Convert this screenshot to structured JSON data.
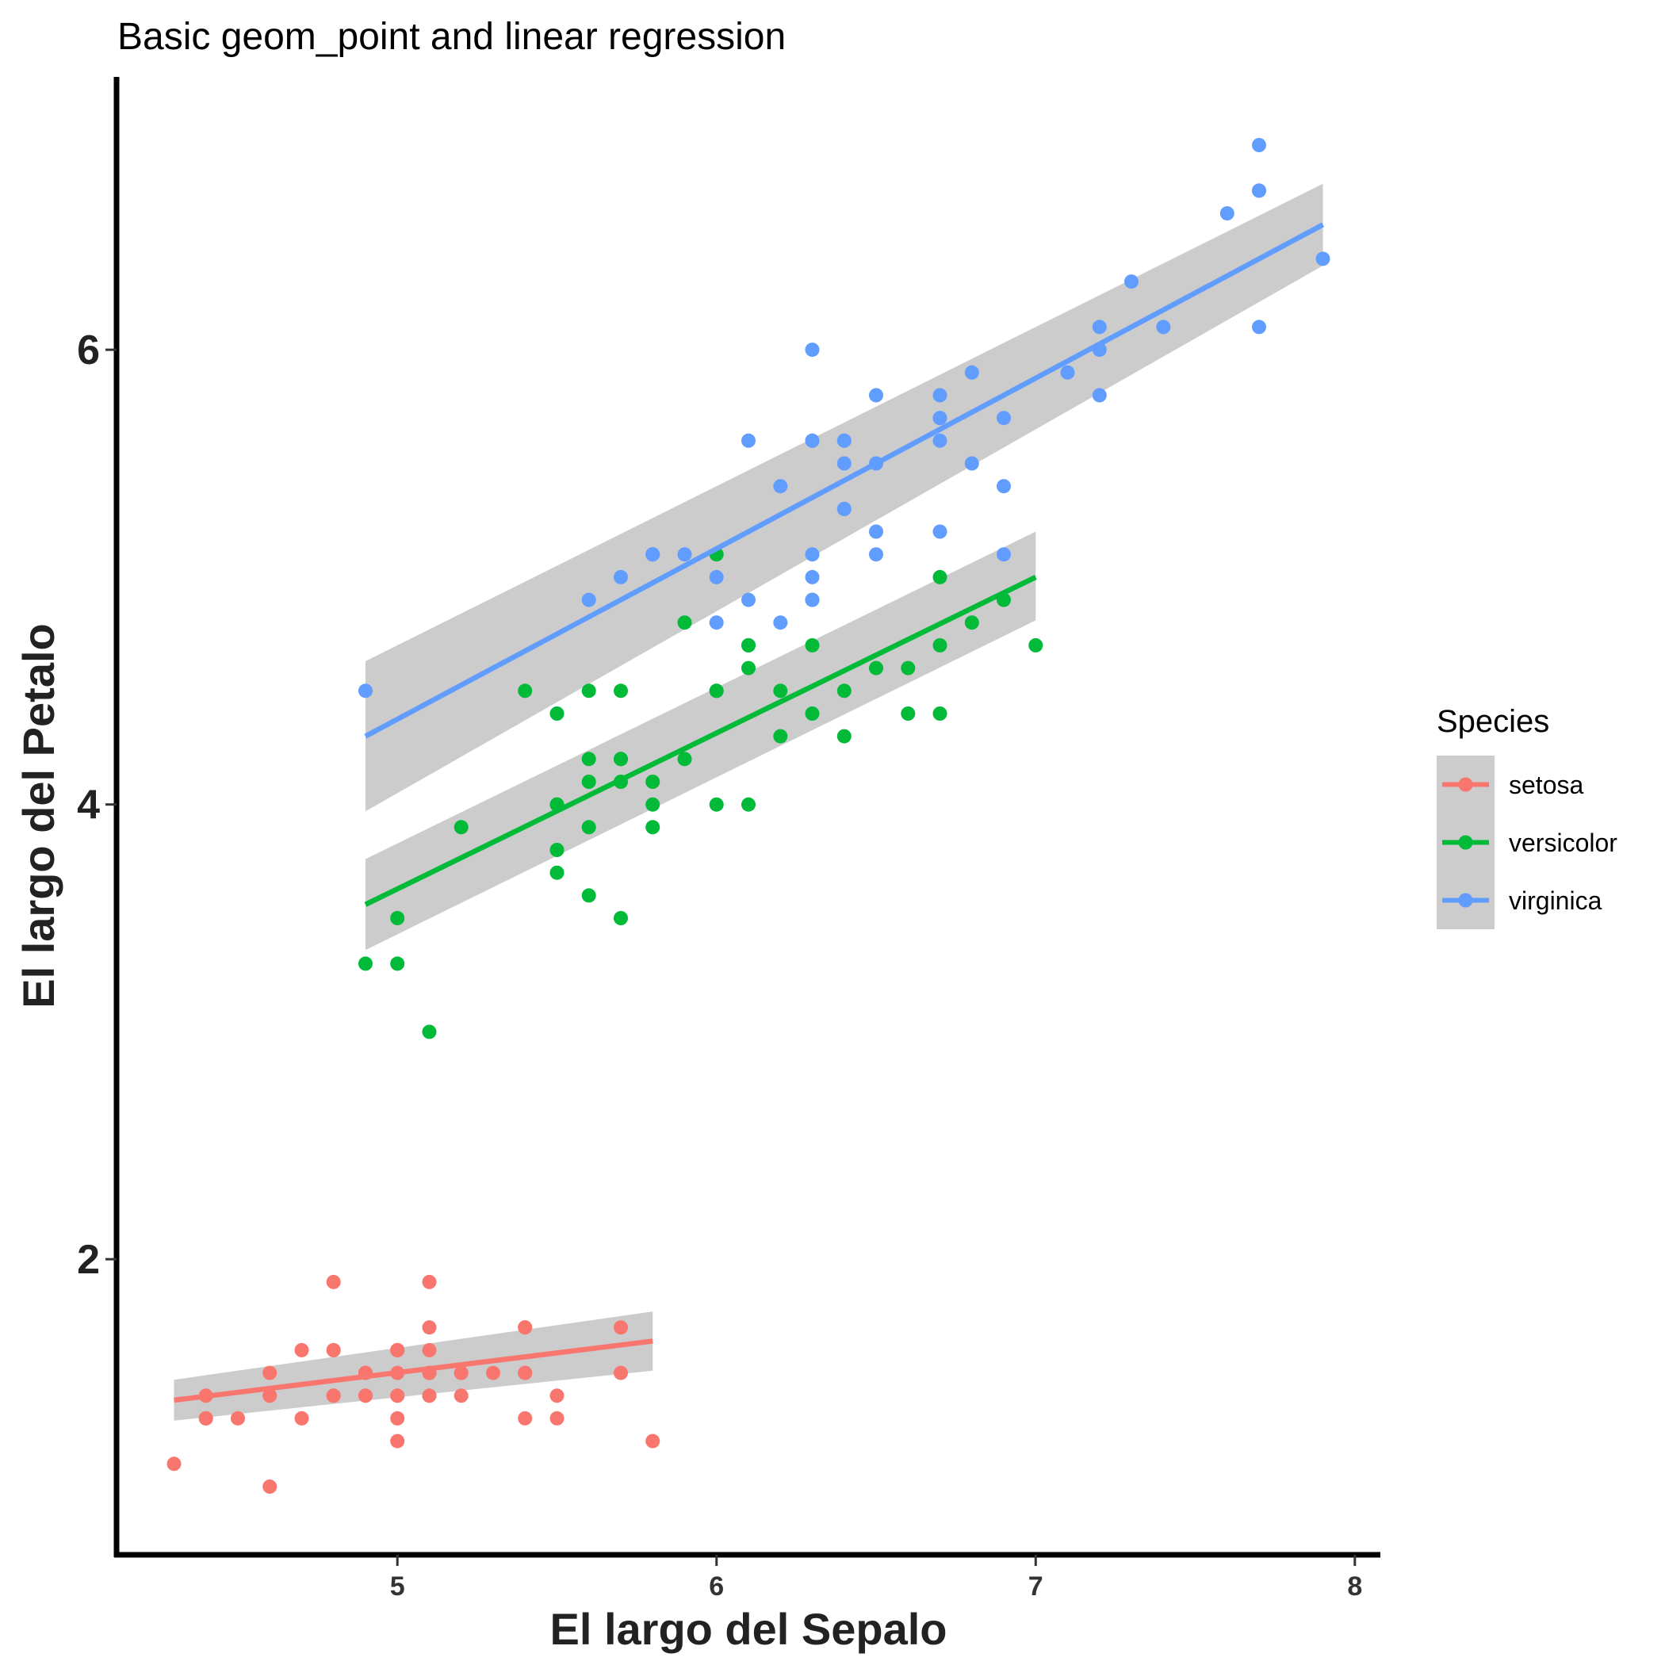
{
  "chart_data": {
    "type": "scatter",
    "title": "Basic geom_point and linear regression",
    "xlabel": "El largo del Sepalo",
    "ylabel": "El largo del Petalo",
    "xlim": [
      4.12,
      8.08
    ],
    "ylim": [
      0.7,
      7.2
    ],
    "xticks": [
      5,
      6,
      7,
      8
    ],
    "yticks": [
      2,
      4,
      6
    ],
    "grid": false,
    "legend": {
      "title": "Species",
      "placement": "right"
    },
    "series": [
      {
        "name": "setosa",
        "color": "#F8766D",
        "points": [
          [
            5.1,
            1.4
          ],
          [
            4.9,
            1.4
          ],
          [
            4.7,
            1.3
          ],
          [
            4.6,
            1.5
          ],
          [
            5.0,
            1.4
          ],
          [
            5.4,
            1.7
          ],
          [
            4.6,
            1.4
          ],
          [
            5.0,
            1.5
          ],
          [
            4.4,
            1.4
          ],
          [
            4.9,
            1.5
          ],
          [
            5.4,
            1.5
          ],
          [
            4.8,
            1.6
          ],
          [
            4.8,
            1.4
          ],
          [
            4.3,
            1.1
          ],
          [
            5.8,
            1.2
          ],
          [
            5.7,
            1.5
          ],
          [
            5.4,
            1.3
          ],
          [
            5.1,
            1.4
          ],
          [
            5.7,
            1.7
          ],
          [
            5.1,
            1.5
          ],
          [
            5.4,
            1.7
          ],
          [
            5.1,
            1.5
          ],
          [
            4.6,
            1.0
          ],
          [
            5.1,
            1.7
          ],
          [
            4.8,
            1.9
          ],
          [
            5.0,
            1.6
          ],
          [
            5.0,
            1.6
          ],
          [
            5.2,
            1.5
          ],
          [
            5.2,
            1.4
          ],
          [
            4.7,
            1.6
          ],
          [
            4.8,
            1.6
          ],
          [
            5.4,
            1.5
          ],
          [
            5.2,
            1.5
          ],
          [
            5.5,
            1.4
          ],
          [
            4.9,
            1.5
          ],
          [
            5.0,
            1.2
          ],
          [
            5.5,
            1.3
          ],
          [
            4.9,
            1.4
          ],
          [
            4.4,
            1.3
          ],
          [
            5.1,
            1.5
          ],
          [
            5.0,
            1.3
          ],
          [
            4.5,
            1.3
          ],
          [
            4.4,
            1.3
          ],
          [
            5.0,
            1.6
          ],
          [
            5.1,
            1.9
          ],
          [
            4.8,
            1.4
          ],
          [
            5.1,
            1.6
          ],
          [
            4.6,
            1.4
          ],
          [
            5.3,
            1.5
          ],
          [
            5.0,
            1.4
          ]
        ],
        "fit": {
          "x_range": [
            4.3,
            5.8
          ],
          "y": [
            1.38,
            1.64
          ],
          "ci_lower": [
            1.29,
            1.51
          ],
          "ci_upper": [
            1.47,
            1.77
          ]
        }
      },
      {
        "name": "versicolor",
        "color": "#00BA38",
        "points": [
          [
            7.0,
            4.7
          ],
          [
            6.4,
            4.5
          ],
          [
            6.9,
            4.9
          ],
          [
            5.5,
            4.0
          ],
          [
            6.5,
            4.6
          ],
          [
            5.7,
            4.5
          ],
          [
            6.3,
            4.7
          ],
          [
            4.9,
            3.3
          ],
          [
            6.6,
            4.6
          ],
          [
            5.2,
            3.9
          ],
          [
            5.0,
            3.5
          ],
          [
            5.9,
            4.2
          ],
          [
            6.0,
            4.0
          ],
          [
            6.1,
            4.7
          ],
          [
            5.6,
            3.6
          ],
          [
            6.7,
            4.4
          ],
          [
            5.6,
            4.5
          ],
          [
            5.8,
            4.1
          ],
          [
            6.2,
            4.5
          ],
          [
            5.6,
            3.9
          ],
          [
            5.9,
            4.8
          ],
          [
            6.1,
            4.0
          ],
          [
            6.3,
            4.9
          ],
          [
            6.1,
            4.7
          ],
          [
            6.4,
            4.3
          ],
          [
            6.6,
            4.4
          ],
          [
            6.8,
            4.8
          ],
          [
            6.7,
            5.0
          ],
          [
            6.0,
            4.5
          ],
          [
            5.7,
            3.5
          ],
          [
            5.5,
            3.8
          ],
          [
            5.5,
            3.7
          ],
          [
            5.8,
            3.9
          ],
          [
            6.0,
            5.1
          ],
          [
            5.4,
            4.5
          ],
          [
            6.0,
            4.5
          ],
          [
            6.7,
            4.7
          ],
          [
            6.3,
            4.4
          ],
          [
            5.6,
            4.1
          ],
          [
            5.5,
            4.0
          ],
          [
            5.5,
            4.4
          ],
          [
            6.1,
            4.6
          ],
          [
            5.8,
            4.0
          ],
          [
            5.0,
            3.3
          ],
          [
            5.6,
            4.2
          ],
          [
            5.7,
            4.2
          ],
          [
            5.7,
            4.2
          ],
          [
            6.2,
            4.3
          ],
          [
            5.1,
            3.0
          ],
          [
            5.7,
            4.1
          ]
        ],
        "fit": {
          "x_range": [
            4.9,
            7.0
          ],
          "y": [
            3.56,
            5.0
          ],
          "ci_lower": [
            3.36,
            4.81
          ],
          "ci_upper": [
            3.76,
            5.2
          ]
        }
      },
      {
        "name": "virginica",
        "color": "#619CFF",
        "points": [
          [
            6.3,
            6.0
          ],
          [
            5.8,
            5.1
          ],
          [
            7.1,
            5.9
          ],
          [
            6.3,
            5.6
          ],
          [
            6.5,
            5.8
          ],
          [
            7.6,
            6.6
          ],
          [
            4.9,
            4.5
          ],
          [
            7.3,
            6.3
          ],
          [
            6.7,
            5.8
          ],
          [
            7.2,
            6.1
          ],
          [
            6.5,
            5.1
          ],
          [
            6.4,
            5.3
          ],
          [
            6.8,
            5.5
          ],
          [
            5.7,
            5.0
          ],
          [
            5.8,
            5.1
          ],
          [
            6.4,
            5.3
          ],
          [
            6.5,
            5.5
          ],
          [
            7.7,
            6.7
          ],
          [
            7.7,
            6.9
          ],
          [
            6.0,
            5.0
          ],
          [
            6.9,
            5.7
          ],
          [
            5.6,
            4.9
          ],
          [
            7.7,
            6.7
          ],
          [
            6.3,
            4.9
          ],
          [
            6.7,
            5.7
          ],
          [
            7.2,
            6.0
          ],
          [
            6.2,
            4.8
          ],
          [
            6.1,
            4.9
          ],
          [
            6.4,
            5.6
          ],
          [
            7.2,
            5.8
          ],
          [
            7.4,
            6.1
          ],
          [
            7.9,
            6.4
          ],
          [
            6.4,
            5.6
          ],
          [
            6.3,
            5.1
          ],
          [
            6.1,
            5.6
          ],
          [
            7.7,
            6.1
          ],
          [
            6.3,
            5.6
          ],
          [
            6.4,
            5.5
          ],
          [
            6.0,
            4.8
          ],
          [
            6.9,
            5.4
          ],
          [
            6.7,
            5.6
          ],
          [
            6.9,
            5.1
          ],
          [
            5.8,
            5.1
          ],
          [
            6.8,
            5.9
          ],
          [
            6.7,
            5.7
          ],
          [
            6.7,
            5.2
          ],
          [
            6.3,
            5.0
          ],
          [
            6.5,
            5.2
          ],
          [
            6.2,
            5.4
          ],
          [
            5.9,
            5.1
          ]
        ],
        "fit": {
          "x_range": [
            4.9,
            7.9
          ],
          "y": [
            4.3,
            6.55
          ],
          "ci_lower": [
            3.97,
            6.37
          ],
          "ci_upper": [
            4.63,
            6.73
          ]
        }
      }
    ]
  }
}
